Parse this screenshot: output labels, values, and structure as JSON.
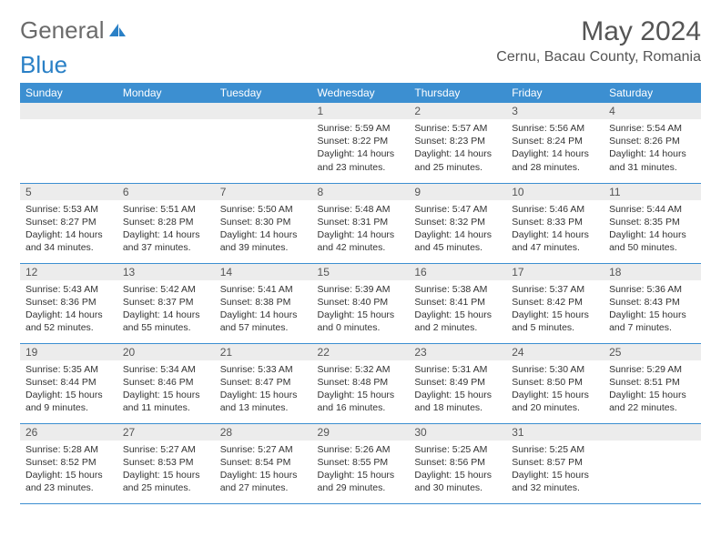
{
  "header": {
    "logo_part1": "General",
    "logo_part2": "Blue",
    "month_title": "May 2024",
    "location": "Cernu, Bacau County, Romania"
  },
  "colors": {
    "header_bg": "#3c8fd1",
    "header_text": "#ffffff",
    "daynum_bg": "#ececec",
    "border": "#3c8fd1",
    "logo_gray": "#6b6b6b",
    "logo_blue": "#2a80c6"
  },
  "weekdays": [
    "Sunday",
    "Monday",
    "Tuesday",
    "Wednesday",
    "Thursday",
    "Friday",
    "Saturday"
  ],
  "weeks": [
    [
      {
        "n": "",
        "sr": "",
        "ss": "",
        "dl": ""
      },
      {
        "n": "",
        "sr": "",
        "ss": "",
        "dl": ""
      },
      {
        "n": "",
        "sr": "",
        "ss": "",
        "dl": ""
      },
      {
        "n": "1",
        "sr": "Sunrise: 5:59 AM",
        "ss": "Sunset: 8:22 PM",
        "dl": "Daylight: 14 hours and 23 minutes."
      },
      {
        "n": "2",
        "sr": "Sunrise: 5:57 AM",
        "ss": "Sunset: 8:23 PM",
        "dl": "Daylight: 14 hours and 25 minutes."
      },
      {
        "n": "3",
        "sr": "Sunrise: 5:56 AM",
        "ss": "Sunset: 8:24 PM",
        "dl": "Daylight: 14 hours and 28 minutes."
      },
      {
        "n": "4",
        "sr": "Sunrise: 5:54 AM",
        "ss": "Sunset: 8:26 PM",
        "dl": "Daylight: 14 hours and 31 minutes."
      }
    ],
    [
      {
        "n": "5",
        "sr": "Sunrise: 5:53 AM",
        "ss": "Sunset: 8:27 PM",
        "dl": "Daylight: 14 hours and 34 minutes."
      },
      {
        "n": "6",
        "sr": "Sunrise: 5:51 AM",
        "ss": "Sunset: 8:28 PM",
        "dl": "Daylight: 14 hours and 37 minutes."
      },
      {
        "n": "7",
        "sr": "Sunrise: 5:50 AM",
        "ss": "Sunset: 8:30 PM",
        "dl": "Daylight: 14 hours and 39 minutes."
      },
      {
        "n": "8",
        "sr": "Sunrise: 5:48 AM",
        "ss": "Sunset: 8:31 PM",
        "dl": "Daylight: 14 hours and 42 minutes."
      },
      {
        "n": "9",
        "sr": "Sunrise: 5:47 AM",
        "ss": "Sunset: 8:32 PM",
        "dl": "Daylight: 14 hours and 45 minutes."
      },
      {
        "n": "10",
        "sr": "Sunrise: 5:46 AM",
        "ss": "Sunset: 8:33 PM",
        "dl": "Daylight: 14 hours and 47 minutes."
      },
      {
        "n": "11",
        "sr": "Sunrise: 5:44 AM",
        "ss": "Sunset: 8:35 PM",
        "dl": "Daylight: 14 hours and 50 minutes."
      }
    ],
    [
      {
        "n": "12",
        "sr": "Sunrise: 5:43 AM",
        "ss": "Sunset: 8:36 PM",
        "dl": "Daylight: 14 hours and 52 minutes."
      },
      {
        "n": "13",
        "sr": "Sunrise: 5:42 AM",
        "ss": "Sunset: 8:37 PM",
        "dl": "Daylight: 14 hours and 55 minutes."
      },
      {
        "n": "14",
        "sr": "Sunrise: 5:41 AM",
        "ss": "Sunset: 8:38 PM",
        "dl": "Daylight: 14 hours and 57 minutes."
      },
      {
        "n": "15",
        "sr": "Sunrise: 5:39 AM",
        "ss": "Sunset: 8:40 PM",
        "dl": "Daylight: 15 hours and 0 minutes."
      },
      {
        "n": "16",
        "sr": "Sunrise: 5:38 AM",
        "ss": "Sunset: 8:41 PM",
        "dl": "Daylight: 15 hours and 2 minutes."
      },
      {
        "n": "17",
        "sr": "Sunrise: 5:37 AM",
        "ss": "Sunset: 8:42 PM",
        "dl": "Daylight: 15 hours and 5 minutes."
      },
      {
        "n": "18",
        "sr": "Sunrise: 5:36 AM",
        "ss": "Sunset: 8:43 PM",
        "dl": "Daylight: 15 hours and 7 minutes."
      }
    ],
    [
      {
        "n": "19",
        "sr": "Sunrise: 5:35 AM",
        "ss": "Sunset: 8:44 PM",
        "dl": "Daylight: 15 hours and 9 minutes."
      },
      {
        "n": "20",
        "sr": "Sunrise: 5:34 AM",
        "ss": "Sunset: 8:46 PM",
        "dl": "Daylight: 15 hours and 11 minutes."
      },
      {
        "n": "21",
        "sr": "Sunrise: 5:33 AM",
        "ss": "Sunset: 8:47 PM",
        "dl": "Daylight: 15 hours and 13 minutes."
      },
      {
        "n": "22",
        "sr": "Sunrise: 5:32 AM",
        "ss": "Sunset: 8:48 PM",
        "dl": "Daylight: 15 hours and 16 minutes."
      },
      {
        "n": "23",
        "sr": "Sunrise: 5:31 AM",
        "ss": "Sunset: 8:49 PM",
        "dl": "Daylight: 15 hours and 18 minutes."
      },
      {
        "n": "24",
        "sr": "Sunrise: 5:30 AM",
        "ss": "Sunset: 8:50 PM",
        "dl": "Daylight: 15 hours and 20 minutes."
      },
      {
        "n": "25",
        "sr": "Sunrise: 5:29 AM",
        "ss": "Sunset: 8:51 PM",
        "dl": "Daylight: 15 hours and 22 minutes."
      }
    ],
    [
      {
        "n": "26",
        "sr": "Sunrise: 5:28 AM",
        "ss": "Sunset: 8:52 PM",
        "dl": "Daylight: 15 hours and 23 minutes."
      },
      {
        "n": "27",
        "sr": "Sunrise: 5:27 AM",
        "ss": "Sunset: 8:53 PM",
        "dl": "Daylight: 15 hours and 25 minutes."
      },
      {
        "n": "28",
        "sr": "Sunrise: 5:27 AM",
        "ss": "Sunset: 8:54 PM",
        "dl": "Daylight: 15 hours and 27 minutes."
      },
      {
        "n": "29",
        "sr": "Sunrise: 5:26 AM",
        "ss": "Sunset: 8:55 PM",
        "dl": "Daylight: 15 hours and 29 minutes."
      },
      {
        "n": "30",
        "sr": "Sunrise: 5:25 AM",
        "ss": "Sunset: 8:56 PM",
        "dl": "Daylight: 15 hours and 30 minutes."
      },
      {
        "n": "31",
        "sr": "Sunrise: 5:25 AM",
        "ss": "Sunset: 8:57 PM",
        "dl": "Daylight: 15 hours and 32 minutes."
      },
      {
        "n": "",
        "sr": "",
        "ss": "",
        "dl": ""
      }
    ]
  ]
}
